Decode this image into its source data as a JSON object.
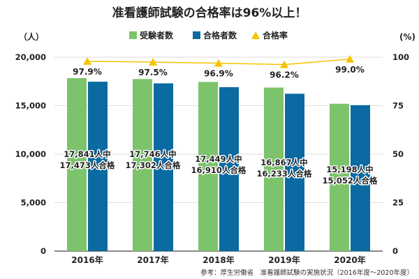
{
  "chart_data": {
    "type": "bar",
    "title": "准看護師試験の合格率は96%以上！",
    "categories": [
      "2016年",
      "2017年",
      "2018年",
      "2019年",
      "2020年"
    ],
    "series": [
      {
        "name": "受験者数",
        "values": [
          17841,
          17746,
          17449,
          16867,
          15198
        ],
        "color": "#7dc36b",
        "axis": "left"
      },
      {
        "name": "合格者数",
        "values": [
          17473,
          17302,
          16910,
          16233,
          15052
        ],
        "color": "#0a6aa1",
        "axis": "left"
      },
      {
        "name": "合格率",
        "values": [
          97.9,
          97.5,
          96.9,
          96.2,
          99.0
        ],
        "color": "#f5c400",
        "axis": "right",
        "marker": "triangle",
        "type": "line"
      }
    ],
    "bar_labels": [
      [
        "17,841人中",
        "17,473人合格"
      ],
      [
        "17,746人中",
        "17,302人合格"
      ],
      [
        "17,449人中",
        "16,910人合格"
      ],
      [
        "16,867人中",
        "16,233人合格"
      ],
      [
        "15,198人中",
        "15,052人合格"
      ]
    ],
    "rate_labels": [
      "97.9%",
      "97.5%",
      "96.9%",
      "96.2%",
      "99.0%"
    ],
    "left_axis": {
      "unit": "（人）",
      "ylim": [
        0,
        20000
      ],
      "ticks": [
        0,
        5000,
        10000,
        15000,
        20000
      ],
      "tick_labels": [
        "0",
        "5,000",
        "10,000",
        "15,000",
        "20,000"
      ]
    },
    "right_axis": {
      "unit": "(%)",
      "ylim": [
        0,
        100
      ],
      "ticks": [
        0,
        25,
        50,
        75,
        100
      ],
      "tick_labels": [
        "0",
        "25",
        "50",
        "75",
        "100"
      ]
    },
    "grid": true,
    "legend_position": "top-center",
    "source": "参考：厚生労働省　准看護師試験の実施状況（2016年度〜2020年度）"
  }
}
